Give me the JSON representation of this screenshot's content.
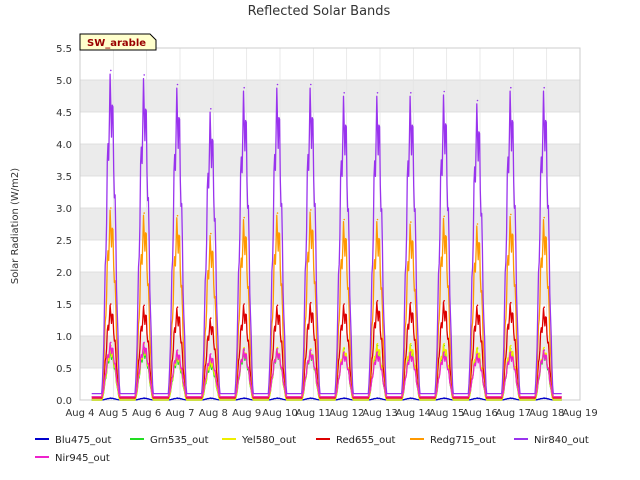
{
  "chart_data": {
    "type": "line",
    "title": "Reflected Solar Bands",
    "xlabel": "",
    "ylabel": "Solar Radiation (W/m2)",
    "annotation": "SW_arable",
    "ylim": [
      0,
      5.5
    ],
    "yticks": [
      "0.0",
      "0.5",
      "1.0",
      "1.5",
      "2.0",
      "2.5",
      "3.0",
      "3.5",
      "4.0",
      "4.5",
      "5.0",
      "5.5"
    ],
    "xlim": [
      4,
      19
    ],
    "xtick_labels": [
      "Aug 4",
      "Aug 5",
      "Aug 6",
      "Aug 7",
      "Aug 8",
      "Aug 9",
      "Aug 10",
      "Aug 11",
      "Aug 12",
      "Aug 13",
      "Aug 14",
      "Aug 15",
      "Aug 16",
      "Aug 17",
      "Aug 18",
      "Aug 19"
    ],
    "grid": true,
    "legend_position": "bottom",
    "day_centers": [
      5,
      6,
      7,
      8,
      9,
      10,
      11,
      12,
      13,
      14,
      15,
      16,
      17,
      18
    ],
    "night_values": {
      "Blu475_out": 0.0,
      "Grn535_out": 0.0,
      "Yel580_out": 0.0,
      "Red655_out": 0.03,
      "Redg715_out": 0.05,
      "Nir840_out": 0.1,
      "Nir945_out": 0.05
    },
    "series": [
      {
        "name": "Blu475_out",
        "color": "#0000cc",
        "values": [
          0.03,
          0.03,
          0.03,
          0.03,
          0.03,
          0.03,
          0.03,
          0.03,
          0.03,
          0.03,
          0.03,
          0.03,
          0.03,
          0.03
        ]
      },
      {
        "name": "Grn535_out",
        "color": "#22dd22",
        "values": [
          0.8,
          0.82,
          0.7,
          0.6,
          0.78,
          0.8,
          0.78,
          0.8,
          0.85,
          0.85,
          0.85,
          0.8,
          0.8,
          0.78
        ]
      },
      {
        "name": "Yel580_out",
        "color": "#eeee00",
        "values": [
          0.85,
          0.88,
          0.75,
          0.65,
          0.82,
          0.82,
          0.8,
          0.82,
          0.88,
          0.88,
          0.88,
          0.82,
          0.85,
          0.82
        ]
      },
      {
        "name": "Red655_out",
        "color": "#dd0000",
        "values": [
          1.5,
          1.48,
          1.45,
          1.28,
          1.5,
          1.48,
          1.52,
          1.5,
          1.55,
          1.52,
          1.55,
          1.48,
          1.52,
          1.45
        ]
      },
      {
        "name": "Redg715_out",
        "color": "#ff9900",
        "values": [
          3.0,
          2.92,
          2.88,
          2.6,
          2.85,
          2.92,
          2.97,
          2.82,
          2.82,
          2.78,
          2.87,
          2.75,
          2.9,
          2.85
        ]
      },
      {
        "name": "Nir840_out",
        "color": "#9933ee",
        "values": [
          5.15,
          5.08,
          4.93,
          4.55,
          4.88,
          4.93,
          4.93,
          4.8,
          4.8,
          4.8,
          4.82,
          4.68,
          4.88,
          4.88
        ]
      },
      {
        "name": "Nir945_out",
        "color": "#ee22cc",
        "values": [
          0.9,
          0.9,
          0.78,
          0.72,
          0.8,
          0.8,
          0.78,
          0.75,
          0.75,
          0.75,
          0.75,
          0.72,
          0.75,
          0.78
        ]
      }
    ]
  }
}
